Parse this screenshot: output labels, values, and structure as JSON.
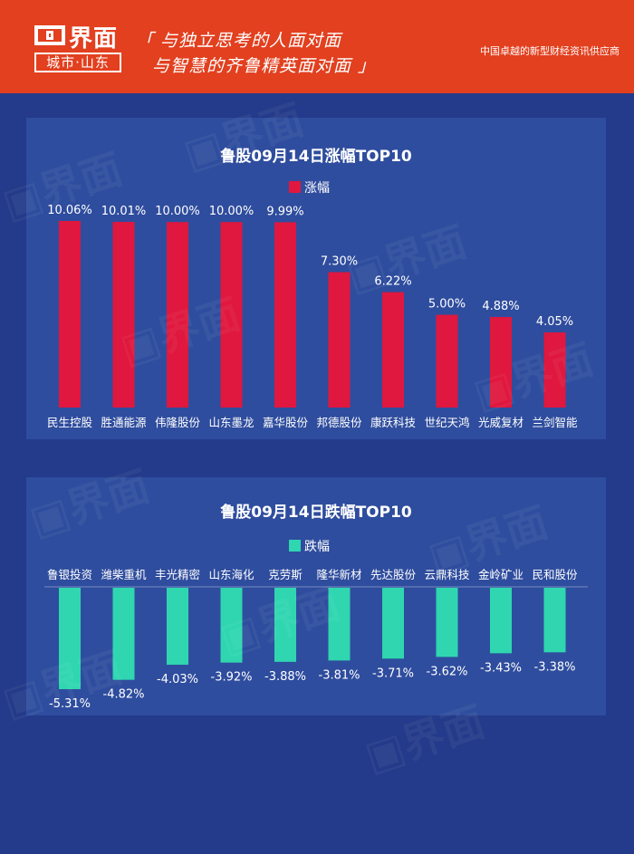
{
  "header": {
    "logo_word": "界面",
    "logo_sub": "城市·山东",
    "slogan_line1": "「 与独立思考的人面对面",
    "slogan_line2": "与智慧的齐鲁精英面对面 」",
    "tagline": "中国卓越的新型财经资讯供应商"
  },
  "colors": {
    "header_bg": "#e2401f",
    "page_bg": "#243a8a",
    "panel_bg": "#2f4d9e",
    "gain_bar": "#e0173e",
    "loss_bar": "#2fd6b0"
  },
  "chart_data": [
    {
      "type": "bar",
      "title": "鲁股09月14日涨幅TOP10",
      "legend": "涨幅",
      "legend_position": "top",
      "categories": [
        "民生控股",
        "胜通能源",
        "伟隆股份",
        "山东墨龙",
        "嘉华股份",
        "邦德股份",
        "康跃科技",
        "世纪天鸿",
        "光威复材",
        "兰剑智能"
      ],
      "values": [
        10.06,
        10.01,
        10.0,
        10.0,
        9.99,
        7.3,
        6.22,
        5.0,
        4.88,
        4.05
      ],
      "labels": [
        "10.06%",
        "10.01%",
        "10.00%",
        "10.00%",
        "9.99%",
        "7.30%",
        "6.22%",
        "5.00%",
        "4.88%",
        "4.05%"
      ],
      "ylim": [
        0,
        10.06
      ],
      "grid": false
    },
    {
      "type": "bar",
      "title": "鲁股09月14日跌幅TOP10",
      "legend": "跌幅",
      "legend_position": "top",
      "categories": [
        "鲁银投资",
        "潍柴重机",
        "丰光精密",
        "山东海化",
        "克劳斯",
        "隆华新材",
        "先达股份",
        "云鼎科技",
        "金岭矿业",
        "民和股份"
      ],
      "values": [
        -5.31,
        -4.82,
        -4.03,
        -3.92,
        -3.88,
        -3.81,
        -3.71,
        -3.62,
        -3.43,
        -3.38
      ],
      "labels": [
        "-5.31%",
        "-4.82%",
        "-4.03%",
        "-3.92%",
        "-3.88%",
        "-3.81%",
        "-3.71%",
        "-3.62%",
        "-3.43%",
        "-3.38%"
      ],
      "ylim": [
        -5.31,
        0
      ],
      "grid": false
    }
  ]
}
